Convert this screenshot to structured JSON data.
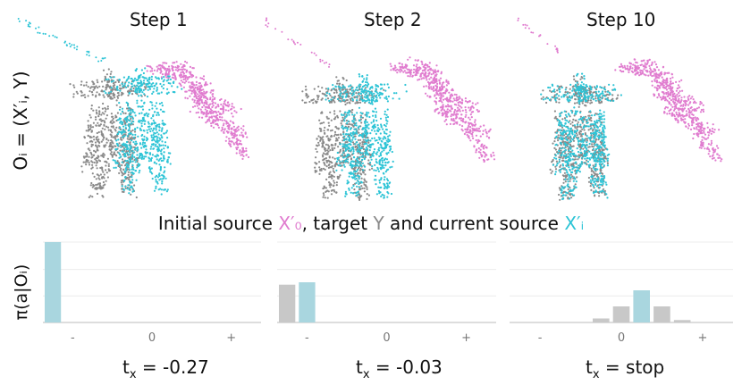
{
  "steps": [
    {
      "title": "Step 1",
      "action_value": "-0.27"
    },
    {
      "title": "Step 2",
      "action_value": "-0.03"
    },
    {
      "title": "Step 10",
      "action_value": "stop"
    }
  ],
  "observation_label": "Oᵢ = (X′ᵢ, Y)",
  "caption": {
    "prefix": "Initial source ",
    "source0": "X′₀",
    "mid1": ", target ",
    "target": "Y",
    "mid2": " and current source ",
    "current": "X′ᵢ"
  },
  "policy_label": "π(a|Oᵢ)",
  "action_symbol": "t",
  "action_subscript": "x",
  "tick_labels": [
    "-",
    "0",
    "+"
  ],
  "colors": {
    "initial_source": "#e07ccf",
    "target": "#8a8a8a",
    "current_source": "#2ec4d6",
    "bar_selected": "#a9d6df",
    "bar_other": "#c8c8c8"
  },
  "chart_data": [
    {
      "type": "bar",
      "title": "Step 1",
      "bins": 11,
      "values": [
        1.0,
        0,
        0,
        0,
        0,
        0,
        0,
        0,
        0,
        0,
        0
      ],
      "selected_index": 0,
      "ylim": [
        0,
        1.0
      ],
      "grid": true
    },
    {
      "type": "bar",
      "title": "Step 2",
      "bins": 11,
      "values": [
        0.47,
        0.5,
        0,
        0,
        0,
        0,
        0,
        0,
        0,
        0,
        0
      ],
      "selected_index": 1,
      "ylim": [
        0,
        1.0
      ],
      "grid": true
    },
    {
      "type": "bar",
      "title": "Step 10",
      "bins": 11,
      "values": [
        0,
        0,
        0,
        0,
        0.05,
        0.2,
        0.4,
        0.2,
        0.03,
        0,
        0
      ],
      "selected_index": 6,
      "ylim": [
        0,
        1.0
      ],
      "grid": true
    }
  ]
}
